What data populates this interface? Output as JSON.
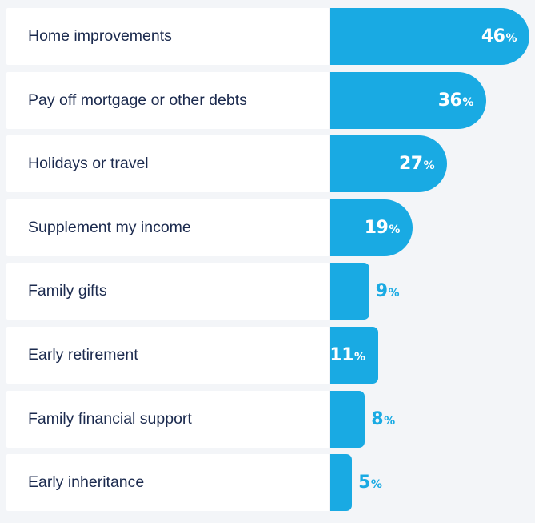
{
  "chart_data": {
    "type": "bar",
    "orientation": "horizontal",
    "categories": [
      "Home improvements",
      "Pay off mortgage or other debts",
      "Holidays or travel",
      "Supplement my income",
      "Family gifts",
      "Early retirement",
      "Family financial support",
      "Early inheritance"
    ],
    "values": [
      46,
      36,
      27,
      19,
      9,
      11,
      8,
      5
    ],
    "value_labels": [
      "46",
      "36",
      "27",
      "19",
      "9",
      "11",
      "8",
      "5"
    ],
    "unit": "%",
    "xlim": [
      0,
      46
    ],
    "grid": false,
    "legend": "none",
    "colors": {
      "bar": "#19aae3",
      "label_bg": "#ffffff",
      "text": "#1b2a4e",
      "background": "#f3f5f8"
    }
  }
}
